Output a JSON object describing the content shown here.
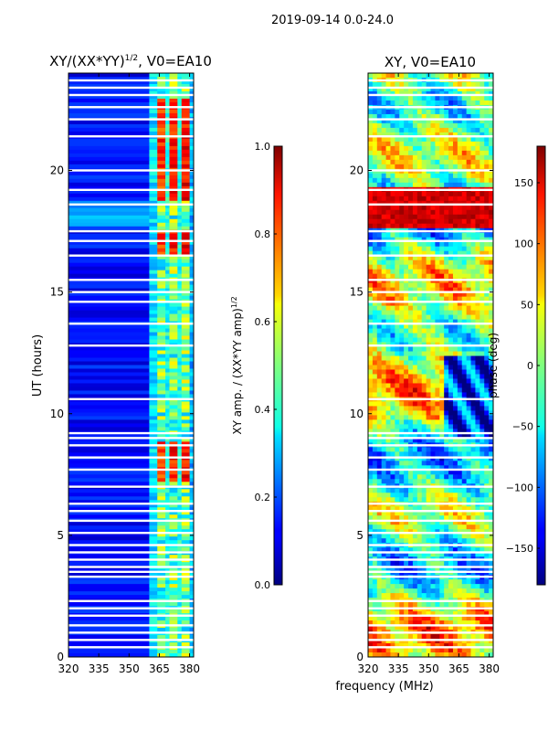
{
  "figure": {
    "suptitle": "2019-09-14 0.0-24.0",
    "xlabel": "frequency (MHz)"
  },
  "panels": [
    {
      "title": "XY/(XX*YY)",
      "title_exp": "1/2",
      "title_suffix": ", V0=EA10",
      "ylabel": "UT (hours)",
      "colorbar_label": "XY amp. / (XX*YY amp)",
      "colorbar_label_exp": "1/2",
      "colorbar_ticks": [
        "0.0",
        "0.2",
        "0.4",
        "0.6",
        "0.8",
        "1.0"
      ]
    },
    {
      "title": "XY, V0=EA10",
      "colorbar_label": "phase (deg)",
      "colorbar_ticks": [
        "−150",
        "−100",
        "−50",
        "0",
        "50",
        "100",
        "150"
      ]
    }
  ],
  "colors": {
    "jet_low": "#00007f",
    "jet_mid": "#7fff7f",
    "jet_high": "#7f0000",
    "gap": "#ffffff"
  },
  "chart_data": [
    {
      "type": "heatmap",
      "title": "XY/(XX*YY)^1/2, V0=EA10",
      "xlabel": "",
      "ylabel": "UT (hours)",
      "x_ticks": [
        "320",
        "335",
        "350",
        "365",
        "380"
      ],
      "y_ticks": [
        "0",
        "5",
        "10",
        "15",
        "20"
      ],
      "xlim": [
        320,
        382
      ],
      "ylim": [
        0,
        24
      ],
      "colorbar": {
        "label": "XY amp. / (XX*YY amp)^1/2",
        "range": [
          0.0,
          1.0
        ]
      },
      "band_levels": [
        {
          "x0": 320,
          "x1": 360,
          "level": 0.12
        },
        {
          "x0": 360,
          "x1": 364,
          "level": 0.35
        },
        {
          "x0": 364,
          "x1": 368,
          "level": 0.75
        },
        {
          "x0": 368,
          "x1": 370,
          "level": 0.4
        },
        {
          "x0": 370,
          "x1": 374,
          "level": 0.78
        },
        {
          "x0": 374,
          "x1": 376,
          "level": 0.4
        },
        {
          "x0": 376,
          "x1": 380,
          "level": 0.8
        },
        {
          "x0": 380,
          "x1": 382,
          "level": 0.3
        }
      ],
      "bright_intervals_hours": [
        [
          7.2,
          8.9
        ],
        [
          16.6,
          17.6
        ],
        [
          18.8,
          23.0
        ]
      ],
      "gap_hours": [
        0.4,
        0.7,
        1.0,
        1.3,
        1.7,
        2.0,
        2.3,
        3.3,
        3.5,
        3.7,
        4.0,
        4.3,
        4.6,
        5.1,
        5.6,
        6.0,
        6.3,
        7.0,
        7.7,
        8.2,
        8.7,
        9.0,
        9.2,
        10.6,
        12.8,
        13.7,
        14.6,
        15.0,
        15.5,
        16.5,
        17.1,
        17.5,
        18.6,
        19.2,
        20.0,
        21.4,
        22.1,
        22.6,
        23.1,
        23.4,
        23.7
      ]
    },
    {
      "type": "heatmap",
      "title": "XY, V0=EA10",
      "xlabel": "frequency (MHz)",
      "ylabel": "",
      "x_ticks": [
        "320",
        "335",
        "350",
        "365",
        "380"
      ],
      "y_ticks": [
        "0",
        "5",
        "10",
        "15",
        "20"
      ],
      "xlim": [
        320,
        382
      ],
      "ylim": [
        0,
        24
      ],
      "colorbar": {
        "label": "phase (deg)",
        "range": [
          -180,
          180
        ]
      },
      "gap_hours": [
        0.4,
        0.7,
        1.0,
        1.3,
        1.7,
        2.0,
        2.3,
        3.3,
        3.5,
        3.7,
        4.0,
        4.3,
        4.6,
        5.1,
        5.6,
        6.0,
        6.3,
        7.0,
        7.7,
        8.2,
        8.7,
        9.0,
        9.2,
        10.6,
        12.8,
        13.7,
        14.6,
        15.0,
        15.5,
        16.5,
        17.1,
        17.5,
        18.6,
        19.2,
        20.0,
        21.4,
        22.1,
        22.6,
        23.1,
        23.4,
        23.7
      ]
    }
  ]
}
